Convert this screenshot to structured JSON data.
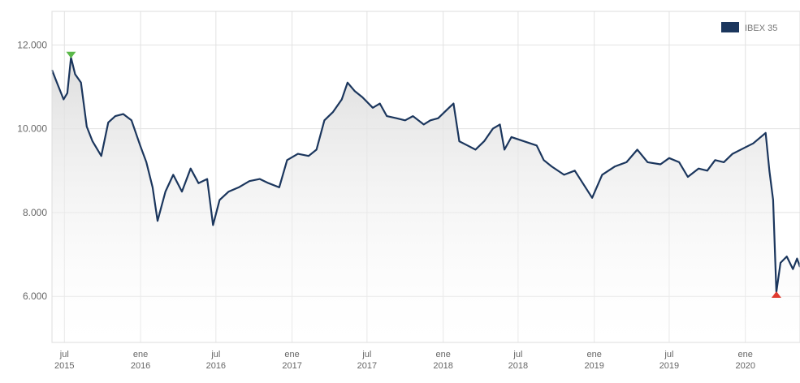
{
  "chart_data": {
    "type": "area",
    "series": [
      {
        "name": "IBEX 35",
        "color": "#1b365d",
        "points": [
          [
            "2015-06-01",
            11400
          ],
          [
            "2015-06-15",
            11050
          ],
          [
            "2015-06-29",
            10700
          ],
          [
            "2015-07-08",
            10850
          ],
          [
            "2015-07-17",
            11700
          ],
          [
            "2015-07-27",
            11300
          ],
          [
            "2015-08-10",
            11100
          ],
          [
            "2015-08-24",
            10050
          ],
          [
            "2015-09-07",
            9700
          ],
          [
            "2015-09-28",
            9350
          ],
          [
            "2015-10-15",
            10150
          ],
          [
            "2015-11-01",
            10300
          ],
          [
            "2015-11-20",
            10350
          ],
          [
            "2015-12-10",
            10200
          ],
          [
            "2015-12-31",
            9600
          ],
          [
            "2016-01-15",
            9200
          ],
          [
            "2016-01-30",
            8600
          ],
          [
            "2016-02-11",
            7800
          ],
          [
            "2016-03-01",
            8500
          ],
          [
            "2016-03-20",
            8900
          ],
          [
            "2016-04-10",
            8500
          ],
          [
            "2016-05-01",
            9050
          ],
          [
            "2016-05-20",
            8700
          ],
          [
            "2016-06-10",
            8800
          ],
          [
            "2016-06-24",
            7700
          ],
          [
            "2016-07-10",
            8300
          ],
          [
            "2016-08-01",
            8500
          ],
          [
            "2016-08-25",
            8600
          ],
          [
            "2016-09-20",
            8750
          ],
          [
            "2016-10-15",
            8800
          ],
          [
            "2016-11-05",
            8700
          ],
          [
            "2016-12-01",
            8600
          ],
          [
            "2016-12-20",
            9250
          ],
          [
            "2017-01-15",
            9400
          ],
          [
            "2017-02-10",
            9350
          ],
          [
            "2017-03-01",
            9500
          ],
          [
            "2017-03-20",
            10200
          ],
          [
            "2017-04-10",
            10400
          ],
          [
            "2017-05-01",
            10700
          ],
          [
            "2017-05-15",
            11100
          ],
          [
            "2017-06-01",
            10900
          ],
          [
            "2017-06-20",
            10750
          ],
          [
            "2017-07-15",
            10500
          ],
          [
            "2017-08-01",
            10600
          ],
          [
            "2017-08-18",
            10300
          ],
          [
            "2017-09-10",
            10250
          ],
          [
            "2017-10-01",
            10200
          ],
          [
            "2017-10-20",
            10300
          ],
          [
            "2017-11-15",
            10100
          ],
          [
            "2017-12-01",
            10200
          ],
          [
            "2017-12-20",
            10250
          ],
          [
            "2018-01-15",
            10500
          ],
          [
            "2018-01-26",
            10600
          ],
          [
            "2018-02-09",
            9700
          ],
          [
            "2018-03-01",
            9600
          ],
          [
            "2018-03-20",
            9500
          ],
          [
            "2018-04-10",
            9700
          ],
          [
            "2018-05-01",
            10000
          ],
          [
            "2018-05-18",
            10100
          ],
          [
            "2018-05-29",
            9500
          ],
          [
            "2018-06-15",
            9800
          ],
          [
            "2018-07-15",
            9700
          ],
          [
            "2018-08-15",
            9600
          ],
          [
            "2018-09-01",
            9250
          ],
          [
            "2018-09-20",
            9100
          ],
          [
            "2018-10-20",
            8900
          ],
          [
            "2018-11-15",
            9000
          ],
          [
            "2018-12-27",
            8350
          ],
          [
            "2019-01-20",
            8900
          ],
          [
            "2019-02-20",
            9100
          ],
          [
            "2019-03-20",
            9200
          ],
          [
            "2019-04-15",
            9500
          ],
          [
            "2019-05-10",
            9200
          ],
          [
            "2019-06-10",
            9150
          ],
          [
            "2019-07-01",
            9300
          ],
          [
            "2019-07-25",
            9200
          ],
          [
            "2019-08-15",
            8850
          ],
          [
            "2019-09-10",
            9050
          ],
          [
            "2019-10-01",
            9000
          ],
          [
            "2019-10-20",
            9250
          ],
          [
            "2019-11-10",
            9200
          ],
          [
            "2019-12-01",
            9400
          ],
          [
            "2019-12-31",
            9550
          ],
          [
            "2020-01-20",
            9650
          ],
          [
            "2020-02-19",
            9900
          ],
          [
            "2020-02-28",
            9000
          ],
          [
            "2020-03-08",
            8300
          ],
          [
            "2020-03-16",
            6100
          ],
          [
            "2020-03-26",
            6800
          ],
          [
            "2020-04-10",
            6950
          ],
          [
            "2020-04-25",
            6650
          ],
          [
            "2020-05-05",
            6900
          ],
          [
            "2020-05-12",
            6700
          ]
        ]
      }
    ],
    "x_ticks": [
      {
        "date": "2015-07-01",
        "line1": "jul",
        "line2": "2015"
      },
      {
        "date": "2016-01-01",
        "line1": "ene",
        "line2": "2016"
      },
      {
        "date": "2016-07-01",
        "line1": "jul",
        "line2": "2016"
      },
      {
        "date": "2017-01-01",
        "line1": "ene",
        "line2": "2017"
      },
      {
        "date": "2017-07-01",
        "line1": "jul",
        "line2": "2017"
      },
      {
        "date": "2018-01-01",
        "line1": "ene",
        "line2": "2018"
      },
      {
        "date": "2018-07-01",
        "line1": "jul",
        "line2": "2018"
      },
      {
        "date": "2019-01-01",
        "line1": "ene",
        "line2": "2019"
      },
      {
        "date": "2019-07-01",
        "line1": "jul",
        "line2": "2019"
      },
      {
        "date": "2020-01-01",
        "line1": "ene",
        "line2": "2020"
      }
    ],
    "y_ticks": [
      {
        "value": 6000,
        "label": "6.000"
      },
      {
        "value": 8000,
        "label": "8.000"
      },
      {
        "value": 10000,
        "label": "10.000"
      },
      {
        "value": 12000,
        "label": "12.000"
      }
    ],
    "xlim": [
      "2015-06-01",
      "2020-05-12"
    ],
    "ylim": [
      4900,
      12800
    ],
    "grid": true,
    "legend_position": "top-right",
    "legend_label": "IBEX 35",
    "markers": {
      "max": {
        "date": "2015-07-17",
        "value": 11700,
        "color": "#5bb84a"
      },
      "min": {
        "date": "2020-03-16",
        "value": 6100,
        "color": "#e03a2f"
      }
    },
    "fill_color": "#e8e8e8"
  }
}
